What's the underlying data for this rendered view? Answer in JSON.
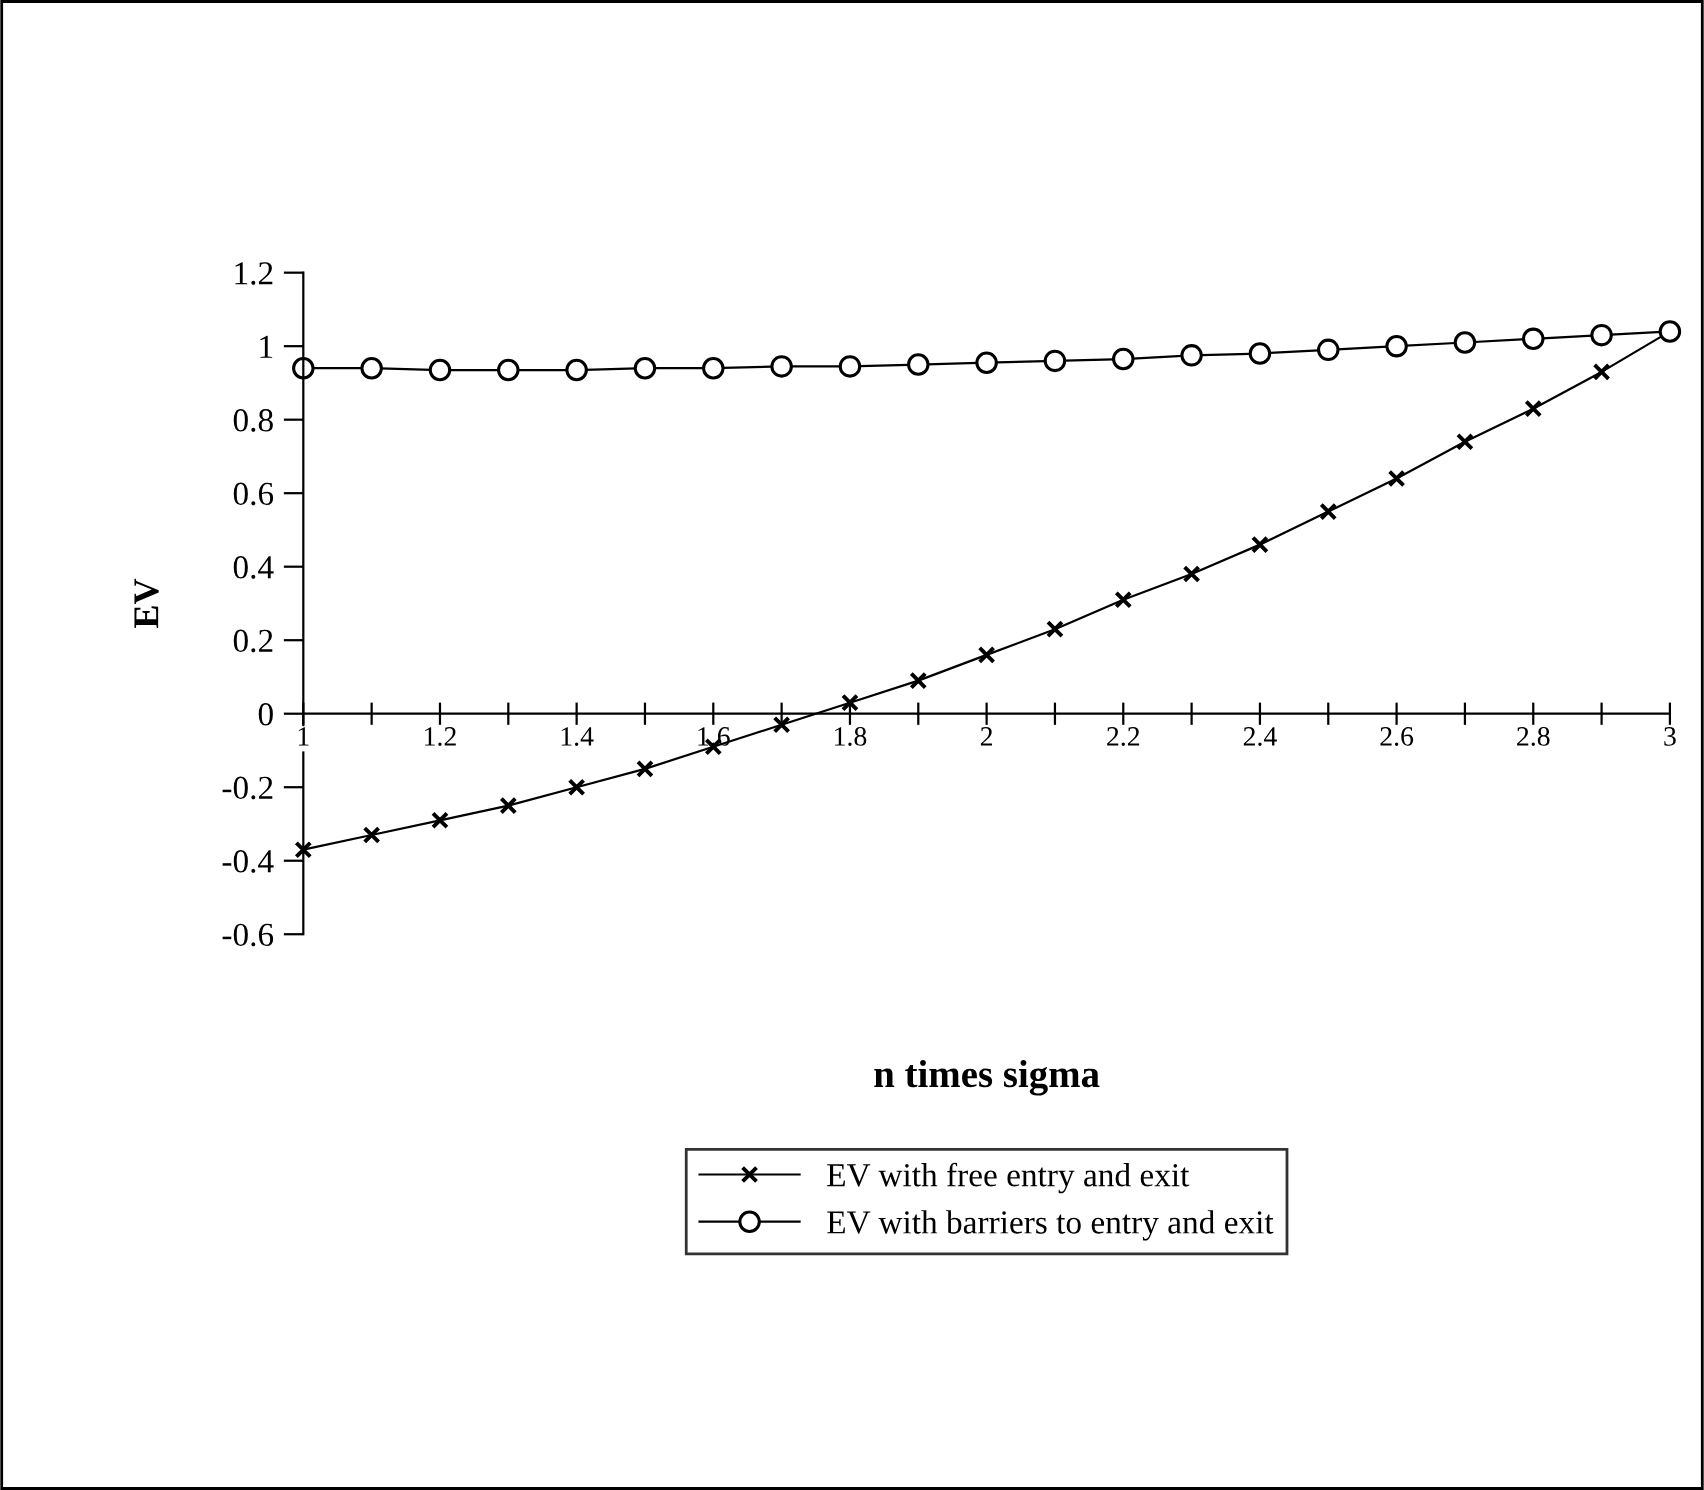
{
  "chart_data": {
    "type": "line",
    "xlabel": "n times sigma",
    "ylabel": "EV",
    "x": [
      1,
      1.1,
      1.2,
      1.3,
      1.4,
      1.5,
      1.6,
      1.7,
      1.8,
      1.9,
      2,
      2.1,
      2.2,
      2.3,
      2.4,
      2.5,
      2.6,
      2.7,
      2.8,
      2.9,
      3
    ],
    "series": [
      {
        "name": "EV with free entry and exit",
        "color": "#000000",
        "marker": "cross",
        "values": [
          -0.37,
          -0.33,
          -0.29,
          -0.25,
          -0.2,
          -0.15,
          -0.09,
          -0.03,
          0.03,
          0.09,
          0.16,
          0.23,
          0.31,
          0.38,
          0.46,
          0.55,
          0.64,
          0.74,
          0.83,
          0.93,
          1.04
        ]
      },
      {
        "name": "EV with barriers to entry and exit",
        "color": "#000000",
        "marker": "circle",
        "values": [
          0.94,
          0.94,
          0.935,
          0.935,
          0.935,
          0.94,
          0.94,
          0.945,
          0.945,
          0.95,
          0.955,
          0.96,
          0.965,
          0.975,
          0.98,
          0.99,
          1.0,
          1.01,
          1.02,
          1.03,
          1.04
        ]
      }
    ],
    "xlim": [
      1,
      3
    ],
    "ylim": [
      -0.6,
      1.2
    ],
    "xticks": [
      1,
      {
        "value": 1.1,
        "label": null
      },
      1.2,
      {
        "value": 1.3,
        "label": null
      },
      1.4,
      {
        "value": 1.5,
        "label": null
      },
      1.6,
      {
        "value": 1.7,
        "label": null
      },
      1.8,
      {
        "value": 1.9,
        "label": null
      },
      2,
      {
        "value": 2.1,
        "label": null
      },
      2.2,
      {
        "value": 2.3,
        "label": null
      },
      2.4,
      {
        "value": 2.5,
        "label": null
      },
      2.6,
      {
        "value": 2.7,
        "label": null
      },
      2.8,
      {
        "value": 2.9,
        "label": null
      },
      3
    ],
    "yticks": [
      -0.6,
      -0.4,
      -0.2,
      0,
      0.2,
      0.4,
      0.6,
      0.8,
      1,
      1.2
    ],
    "grid": false,
    "legend": "bottom",
    "line_style": "solid"
  }
}
